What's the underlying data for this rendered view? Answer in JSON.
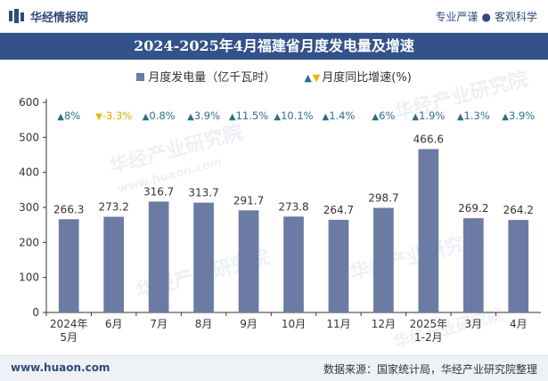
{
  "header": {
    "brand": "华经情报网",
    "tagline_left": "专业严谨",
    "tagline_right": "客观科学"
  },
  "chart_data": {
    "type": "bar",
    "title": "2024-2025年4月福建省月度发电量及增速",
    "categories": [
      "2024年\n5月",
      "6月",
      "7月",
      "8月",
      "9月",
      "10月",
      "11月",
      "12月",
      "2025年\n1-2月",
      "3月",
      "4月"
    ],
    "series": [
      {
        "name": "月度发电量（亿千瓦时）",
        "type": "bar",
        "color": "#6b7ba3",
        "values": [
          266.3,
          273.2,
          316.7,
          313.7,
          291.7,
          273.8,
          264.7,
          298.7,
          466.6,
          269.2,
          264.2
        ],
        "labels": [
          "266.3",
          "273.2",
          "316.7",
          "313.7",
          "291.7",
          "273.8",
          "264.7",
          "298.7",
          "466.6",
          "269.2",
          "264.2"
        ]
      },
      {
        "name": "月度同比增速(%)",
        "type": "annotation",
        "up_color": "#2e6f88",
        "down_color": "#e8b800",
        "values": [
          8,
          -3.3,
          0.8,
          3.9,
          11.5,
          10.1,
          1.4,
          6,
          1.9,
          1.3,
          3.9
        ],
        "labels": [
          "8%",
          "-3.3%",
          "0.8%",
          "3.9%",
          "11.5%",
          "10.1%",
          "1.4%",
          "6%",
          "1.9%",
          "1.3%",
          "3.9%"
        ]
      }
    ],
    "ylim": [
      0,
      600
    ],
    "yticks": [
      0,
      100,
      200,
      300,
      400,
      500,
      600
    ],
    "grid": false,
    "legend": "top"
  },
  "watermark": {
    "text": "华经产业研究院",
    "url_text": "www.huaon.com"
  },
  "footer": {
    "url": "www.huaon.com",
    "source": "数据来源：国家统计局，华经产业研究院整理"
  }
}
